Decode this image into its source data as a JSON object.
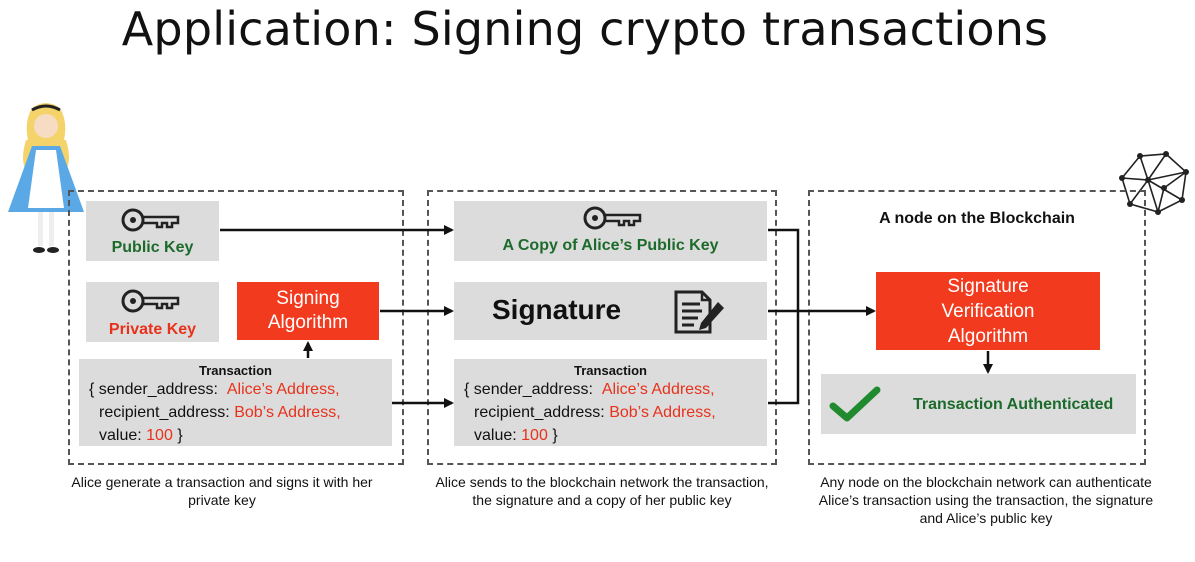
{
  "title": "Application: Signing crypto transactions",
  "panel1": {
    "public_key_label": "Public Key",
    "private_key_label": "Private Key",
    "signing_algorithm_label": "Signing Algorithm",
    "caption": "Alice generate a transaction and signs it with her private key"
  },
  "panel2": {
    "copy_key_label": "A Copy of Alice’s Public Key",
    "signature_label": "Signature",
    "caption": "Alice sends to the blockchain network the transaction, the signature and a copy of her public key"
  },
  "panel3": {
    "node_title": "A node on the Blockchain",
    "verify_label": "Signature Verification Algorithm",
    "authenticated_label": "Transaction Authenticated",
    "caption": "Any node on the blockchain network can authenticate Alice’s transaction using the transaction, the signature and Alice’s public key"
  },
  "transaction": {
    "title": "Transaction",
    "open": "{ sender_address:",
    "sender_value": "Alice’s Address,",
    "recipient_key": "recipient_address:",
    "recipient_value": "Bob’s Address,",
    "value_key": "value:",
    "value_value": "100",
    "close": "}"
  },
  "colors": {
    "accent_red": "#f23a1e",
    "key_green": "#1d6b2c",
    "panel_grey": "#dcdcdc"
  },
  "icons": [
    "alice-figure-icon",
    "key-icon",
    "document-pen-icon",
    "checkmark-icon",
    "network-graph-icon"
  ]
}
